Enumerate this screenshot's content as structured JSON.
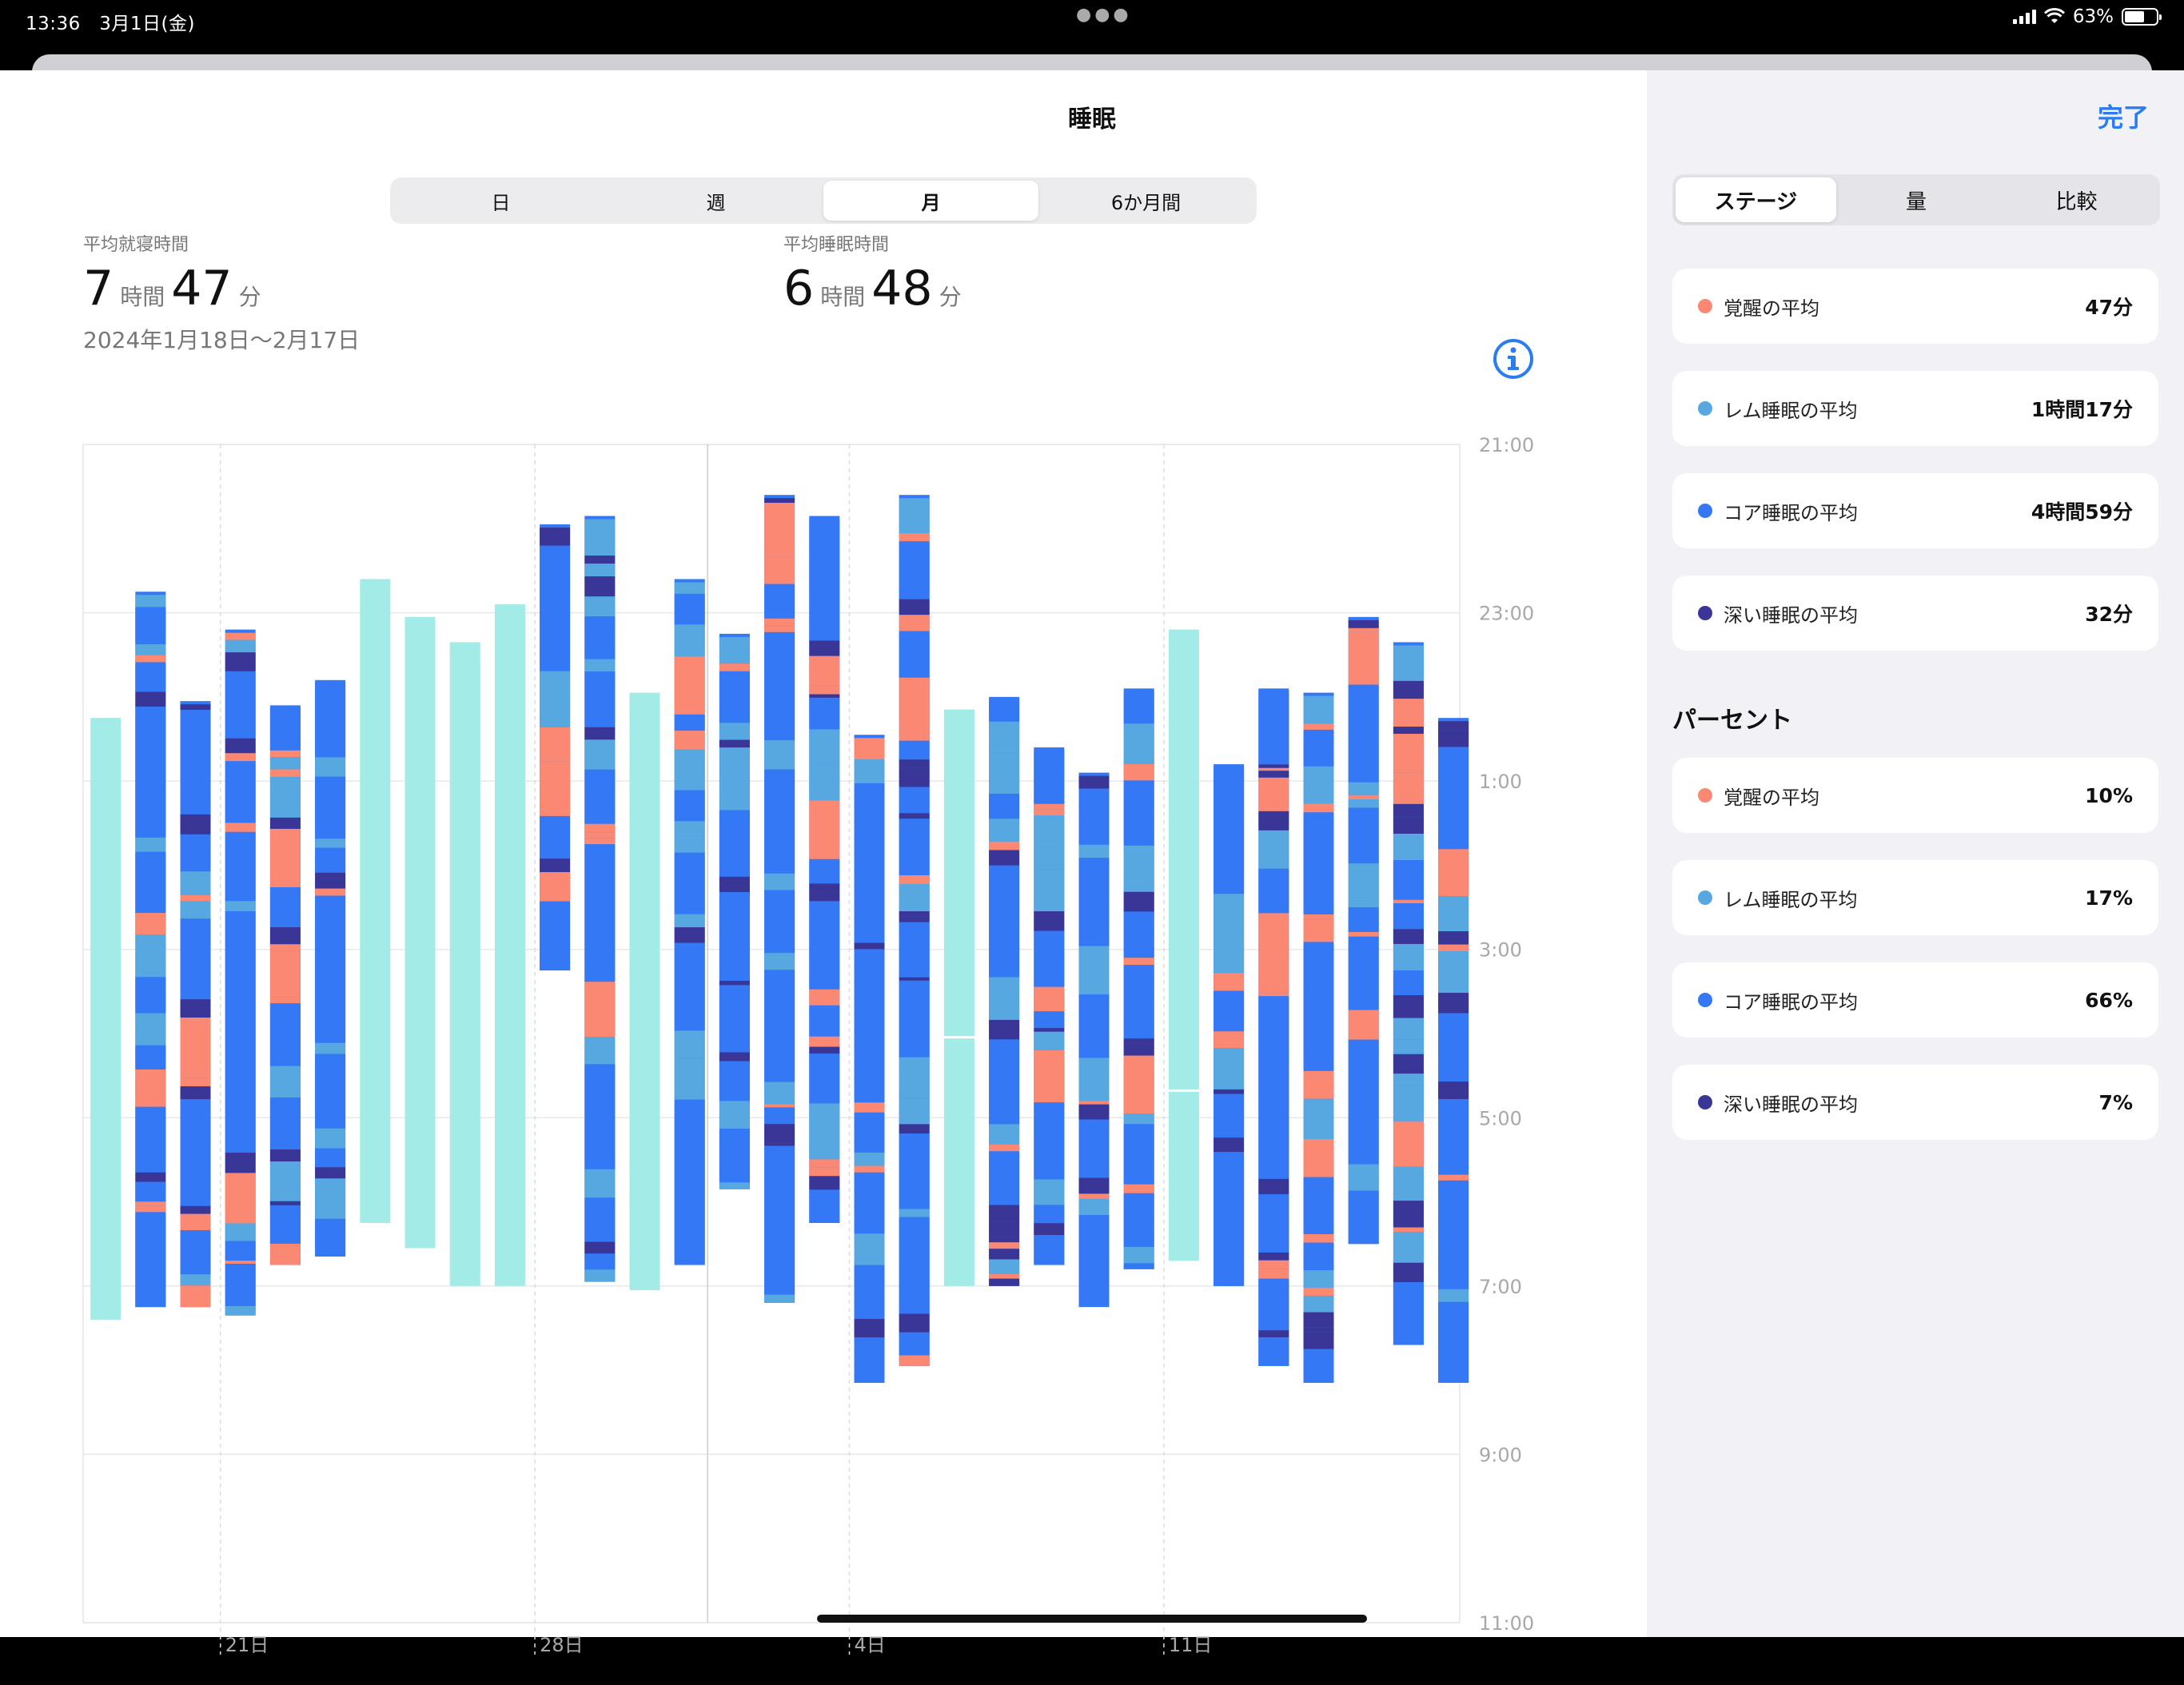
{
  "status": {
    "time": "13:36",
    "date": "3月1日(金)",
    "battery": "63%"
  },
  "title": "睡眠",
  "done": "完了",
  "range_tabs": [
    {
      "label": "日",
      "active": false
    },
    {
      "label": "週",
      "active": false
    },
    {
      "label": "月",
      "active": true
    },
    {
      "label": "6か月間",
      "active": false
    }
  ],
  "stats": {
    "bed": {
      "label": "平均就寝時間",
      "hours": "7",
      "hours_unit": "時間",
      "minutes": "47",
      "minutes_unit": "分"
    },
    "sleep": {
      "label": "平均睡眠時間",
      "hours": "6",
      "hours_unit": "時間",
      "minutes": "48",
      "minutes_unit": "分"
    },
    "date_range": "2024年1月18日〜2月17日"
  },
  "colors": {
    "awake": "#fa8872",
    "rem": "#57a7e1",
    "core": "#3478f6",
    "deep": "#3a3697",
    "inbed": "#a3ebe7",
    "accent": "#2a7cf0"
  },
  "sidebar": {
    "tabs": [
      {
        "label": "ステージ",
        "active": true
      },
      {
        "label": "量",
        "active": false
      },
      {
        "label": "比較",
        "active": false
      }
    ],
    "stage_cards": [
      {
        "label": "覚醒の平均",
        "value": "47分",
        "color": "#fa8872"
      },
      {
        "label": "レム睡眠の平均",
        "value": "1時間17分",
        "color": "#57a7e1"
      },
      {
        "label": "コア睡眠の平均",
        "value": "4時間59分",
        "color": "#3478f6"
      },
      {
        "label": "深い睡眠の平均",
        "value": "32分",
        "color": "#3a3697"
      }
    ],
    "percent_header": "パーセント",
    "percent_cards": [
      {
        "label": "覚醒の平均",
        "value": "10%",
        "color": "#fa8872"
      },
      {
        "label": "レム睡眠の平均",
        "value": "17%",
        "color": "#57a7e1"
      },
      {
        "label": "コア睡眠の平均",
        "value": "66%",
        "color": "#3478f6"
      },
      {
        "label": "深い睡眠の平均",
        "value": "7%",
        "color": "#3a3697"
      }
    ]
  },
  "chart_data": {
    "type": "bar",
    "y_axis_labels": [
      "21:00",
      "23:00",
      "1:00",
      "3:00",
      "5:00",
      "7:00",
      "9:00",
      "11:00"
    ],
    "x_axis_labels": [
      {
        "label": "21日",
        "day": 3
      },
      {
        "label": "28日",
        "day": 10
      },
      {
        "label": "4日",
        "day": 17
      },
      {
        "label": "11日",
        "day": 24
      }
    ],
    "days": [
      {
        "day": 0,
        "start": 0.25,
        "end": 7.4,
        "kind": "inbed"
      },
      {
        "day": 1,
        "start": -1.25,
        "end": 7.25,
        "kind": "stages"
      },
      {
        "day": 2,
        "start": 0.05,
        "end": 7.25,
        "kind": "stages"
      },
      {
        "day": 3,
        "start": -0.8,
        "end": 7.35,
        "kind": "stages"
      },
      {
        "day": 4,
        "start": 0.1,
        "end": 6.75,
        "kind": "stages"
      },
      {
        "day": 5,
        "start": -0.2,
        "end": 6.65,
        "kind": "stages"
      },
      {
        "day": 6,
        "start": -1.4,
        "end": 6.25,
        "kind": "inbed"
      },
      {
        "day": 7,
        "start": -0.95,
        "end": 6.55,
        "kind": "inbed"
      },
      {
        "day": 8,
        "start": -0.65,
        "end": 7.0,
        "kind": "inbed"
      },
      {
        "day": 9,
        "start": -1.1,
        "end": 7.0,
        "kind": "inbed"
      },
      {
        "day": 10,
        "start": -2.05,
        "end": 3.25,
        "kind": "stages"
      },
      {
        "day": 11,
        "start": -2.15,
        "end": 6.95,
        "kind": "stages"
      },
      {
        "day": 12,
        "start": -0.05,
        "end": 7.05,
        "kind": "inbed"
      },
      {
        "day": 13,
        "start": -1.4,
        "end": 6.75,
        "kind": "stages"
      },
      {
        "day": 14,
        "start": -0.75,
        "end": 5.85,
        "kind": "stages"
      },
      {
        "day": 15,
        "start": -2.4,
        "end": 7.2,
        "kind": "stages"
      },
      {
        "day": 16,
        "start": -2.15,
        "end": 6.25,
        "kind": "stages"
      },
      {
        "day": 17,
        "start": 0.45,
        "end": 8.15,
        "kind": "stages"
      },
      {
        "day": 18,
        "start": -2.4,
        "end": 7.95,
        "kind": "stages"
      },
      {
        "day": 19,
        "start": 0.15,
        "end": 7.0,
        "kind": "inbed"
      },
      {
        "day": 20,
        "start": 0.0,
        "end": 7.0,
        "kind": "stages"
      },
      {
        "day": 21,
        "start": 0.6,
        "end": 6.75,
        "kind": "stages"
      },
      {
        "day": 22,
        "start": 0.9,
        "end": 7.25,
        "kind": "stages"
      },
      {
        "day": 23,
        "start": -0.1,
        "end": 6.8,
        "kind": "stages"
      },
      {
        "day": 24,
        "start": -0.8,
        "end": 6.7,
        "kind": "inbed"
      },
      {
        "day": 25,
        "start": 0.8,
        "end": 7.0,
        "kind": "stages"
      },
      {
        "day": 26,
        "start": -0.1,
        "end": 7.95,
        "kind": "stages"
      },
      {
        "day": 27,
        "start": -0.05,
        "end": 8.15,
        "kind": "stages"
      },
      {
        "day": 28,
        "start": -0.95,
        "end": 6.5,
        "kind": "stages"
      },
      {
        "day": 29,
        "start": -0.65,
        "end": 7.7,
        "kind": "stages"
      },
      {
        "day": 30,
        "start": 0.25,
        "end": 8.15,
        "kind": "stages"
      }
    ]
  }
}
